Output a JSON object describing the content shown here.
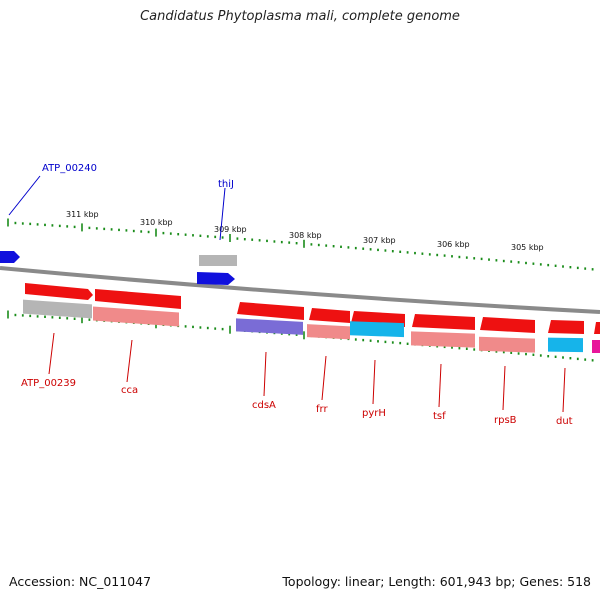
{
  "title": "Candidatus Phytoplasma mali, complete genome",
  "footer": {
    "accession": "Accession: NC_011047",
    "summary": "Topology: linear; Length: 601,943 bp; Genes: 518"
  },
  "colors": {
    "backbone": "#8a8a8a",
    "tick": "#1a8c1a",
    "label_top": "#0000cc",
    "label_bottom": "#cc0000",
    "cds": "#ee1111",
    "cds_light": "#f08a8a",
    "grey": "#b5b5b5",
    "blue": "#1010dd",
    "purple": "#7a6cd6",
    "cyan": "#16b4ea",
    "magenta": "#e8169a"
  },
  "scale_labels": [
    "311 kbp",
    "310 kbp",
    "309 kbp",
    "308 kbp",
    "307 kbp",
    "306 kbp",
    "305 kbp"
  ],
  "genes_top": [
    "ATP_00240",
    "thiJ"
  ],
  "genes_bottom": [
    "ATP_00239",
    "cca",
    "cdsA",
    "frr",
    "pyrH",
    "tsf",
    "rpsB",
    "dut"
  ]
}
